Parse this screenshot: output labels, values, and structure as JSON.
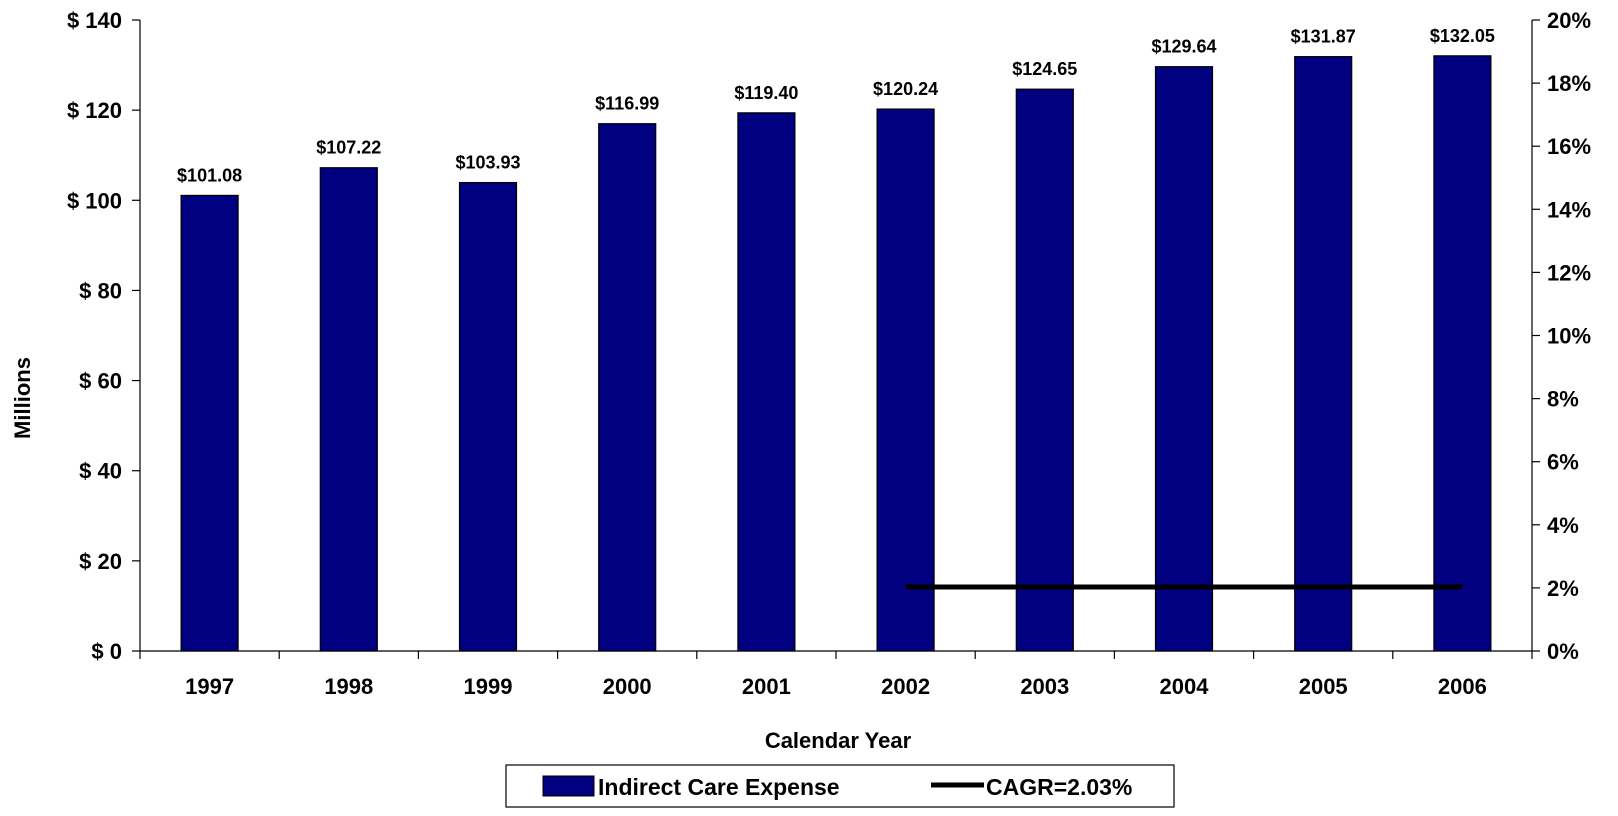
{
  "chart_data": {
    "type": "bar",
    "categories": [
      "1997",
      "1998",
      "1999",
      "2000",
      "2001",
      "2002",
      "2003",
      "2004",
      "2005",
      "2006"
    ],
    "series": [
      {
        "name": "Indirect Care Expense",
        "type": "bar",
        "axis": "left",
        "values": [
          101.08,
          107.22,
          103.93,
          116.99,
          119.4,
          120.24,
          124.65,
          129.64,
          131.87,
          132.05
        ],
        "labels": [
          "$101.08",
          "$107.22",
          "$103.93",
          "$116.99",
          "$119.40",
          "$120.24",
          "$124.65",
          "$129.64",
          "$131.87",
          "$132.05"
        ]
      },
      {
        "name": "CAGR=2.03%",
        "type": "line",
        "axis": "right",
        "x": [
          "2002",
          "2006"
        ],
        "values": [
          2.03,
          2.03
        ]
      }
    ],
    "xlabel": "Calendar Year",
    "ylabel": "Millions",
    "ylim": [
      0,
      140
    ],
    "y_ticks": [
      0,
      20,
      40,
      60,
      80,
      100,
      120,
      140
    ],
    "y_tick_labels": [
      "$ 0",
      "$ 20",
      "$ 40",
      "$ 60",
      "$ 80",
      "$ 100",
      "$ 120",
      "$ 140"
    ],
    "y2lim": [
      0,
      20
    ],
    "y2_ticks": [
      0,
      2,
      4,
      6,
      8,
      10,
      12,
      14,
      16,
      18,
      20
    ],
    "y2_tick_labels": [
      "0%",
      "2%",
      "4%",
      "6%",
      "8%",
      "10%",
      "12%",
      "14%",
      "16%",
      "18%",
      "20%"
    ],
    "grid": false,
    "legend": "bottom",
    "colors": {
      "bar": "#000080",
      "bar_outline": "#000000",
      "line": "#000000"
    }
  }
}
